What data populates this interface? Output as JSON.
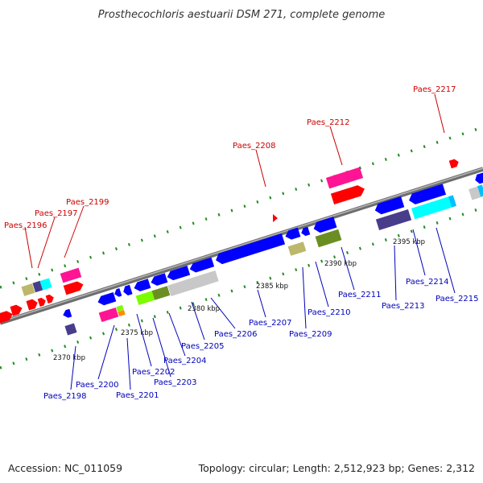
{
  "title": "Prosthecochloris aestuarii DSM 271, complete genome",
  "footer": {
    "accession": "Accession: NC_011059",
    "topology": "Topology: circular; Length: 2,512,923 bp; Genes: 2,312"
  },
  "colors": {
    "backbone": "#8a8a8a",
    "ticks": "#228b22",
    "label_forward": "#cc0000",
    "label_reverse": "#0000bb",
    "gene_red": "#ff0000",
    "gene_blue": "#0000ff",
    "gene_magenta": "#ff1493",
    "gene_cyan": "#00ffff",
    "gene_khaki": "#bdb76b",
    "gene_navy": "#483d8b",
    "gene_olive": "#6b8e23",
    "gene_lime": "#7cfc00",
    "gene_silver": "#c8c8c8",
    "gene_orange": "#ff8c00"
  },
  "kbp_labels": [
    "2370 kbp",
    "2375 kbp",
    "2380 kbp",
    "2385 kbp",
    "2390 kbp",
    "2395 kbp"
  ],
  "gene_labels_forward": [
    "Paes_2196",
    "Paes_2197",
    "Paes_2199",
    "Paes_2208",
    "Paes_2212",
    "Paes_2217"
  ],
  "gene_labels_reverse": [
    "Paes_2198",
    "Paes_2200",
    "Paes_2201",
    "Paes_2202",
    "Paes_2203",
    "Paes_2204",
    "Paes_2205",
    "Paes_2206",
    "Paes_2207",
    "Paes_2209",
    "Paes_2210",
    "Paes_2211",
    "Paes_2213",
    "Paes_2214",
    "Paes_2215"
  ]
}
